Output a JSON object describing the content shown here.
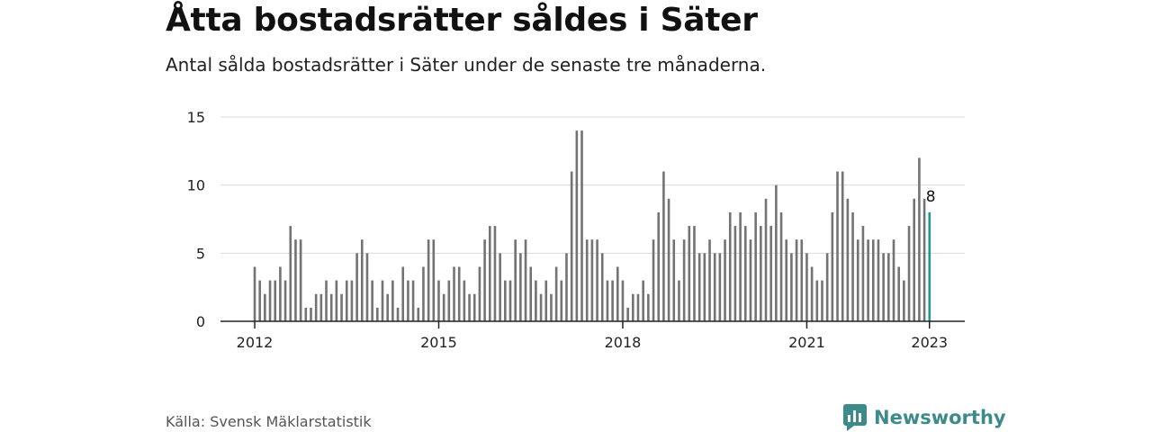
{
  "header": {
    "title": "Åtta bostadsrätter såldes i Säter",
    "subtitle": "Antal sålda bostadsrätter i Säter under de senaste tre månaderna."
  },
  "footer": {
    "source": "Källa: Svensk Mäklarstatistik",
    "brand": "Newsworthy",
    "brand_icon": "newsworthy-logo-icon"
  },
  "colors": {
    "bar": "#737373",
    "highlight": "#1a9c94",
    "grid": "#d9d9d9",
    "axis": "#222222",
    "brand": "#3d8a8a"
  },
  "chart_data": {
    "type": "bar",
    "x_start": "2012-01",
    "x_ticks": [
      {
        "label": "2012",
        "month": "2012-01"
      },
      {
        "label": "2015",
        "month": "2015-01"
      },
      {
        "label": "2018",
        "month": "2018-01"
      },
      {
        "label": "2021",
        "month": "2021-01"
      },
      {
        "label": "2023",
        "month": "2023-01"
      }
    ],
    "values": [
      4,
      3,
      2,
      3,
      3,
      4,
      3,
      7,
      6,
      6,
      1,
      1,
      2,
      2,
      3,
      2,
      3,
      2,
      3,
      3,
      5,
      6,
      5,
      3,
      1,
      3,
      2,
      3,
      1,
      4,
      3,
      3,
      1,
      4,
      6,
      6,
      3,
      2,
      3,
      4,
      4,
      3,
      2,
      2,
      4,
      6,
      7,
      7,
      5,
      3,
      3,
      6,
      5,
      6,
      4,
      3,
      2,
      3,
      2,
      4,
      3,
      5,
      11,
      14,
      14,
      6,
      6,
      6,
      5,
      3,
      3,
      4,
      3,
      1,
      2,
      2,
      3,
      2,
      6,
      8,
      11,
      9,
      6,
      3,
      6,
      7,
      7,
      5,
      5,
      6,
      5,
      5,
      6,
      8,
      7,
      8,
      7,
      6,
      8,
      7,
      9,
      7,
      10,
      8,
      6,
      5,
      6,
      6,
      5,
      4,
      3,
      3,
      5,
      8,
      11,
      11,
      9,
      8,
      6,
      7,
      6,
      6,
      6,
      5,
      5,
      6,
      4,
      3,
      7,
      9,
      12,
      9,
      8
    ],
    "highlight_label": "8",
    "ylim": [
      0,
      15
    ],
    "yticks": [
      0,
      5,
      10,
      15
    ],
    "grid": true,
    "legend": "none"
  }
}
